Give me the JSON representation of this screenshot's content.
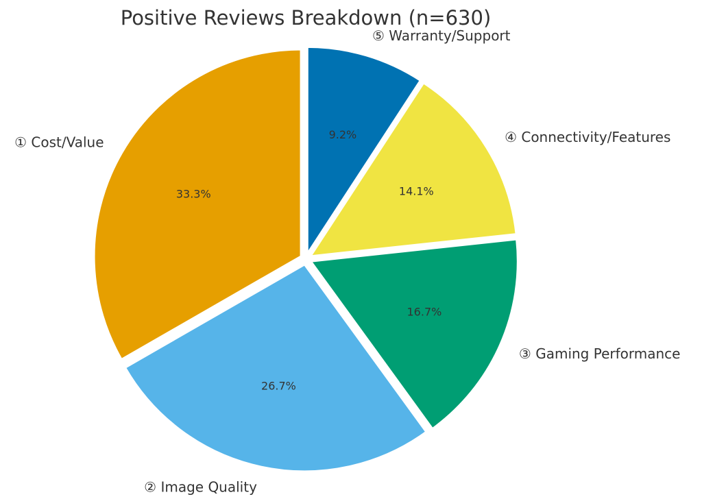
{
  "chart_data": {
    "type": "pie",
    "title": "Positive Reviews Breakdown (n=630)",
    "slices": [
      {
        "label": "① Cost/Value",
        "value": 33.3,
        "pct_label": "33.3%",
        "color": "#E69F00"
      },
      {
        "label": "② Image Quality",
        "value": 26.7,
        "pct_label": "26.7%",
        "color": "#56B4E9"
      },
      {
        "label": "③ Gaming Performance",
        "value": 16.7,
        "pct_label": "16.7%",
        "color": "#009E73"
      },
      {
        "label": "④ Connectivity/Features",
        "value": 14.1,
        "pct_label": "14.1%",
        "color": "#F0E442"
      },
      {
        "label": "⑤ Warranty/Support",
        "value": 9.2,
        "pct_label": "9.2%",
        "color": "#0072B2"
      }
    ],
    "start_angle": 90,
    "direction": "counterclockwise",
    "exploded": true,
    "wedge_edge_color": "#ffffff",
    "legend": "none"
  }
}
